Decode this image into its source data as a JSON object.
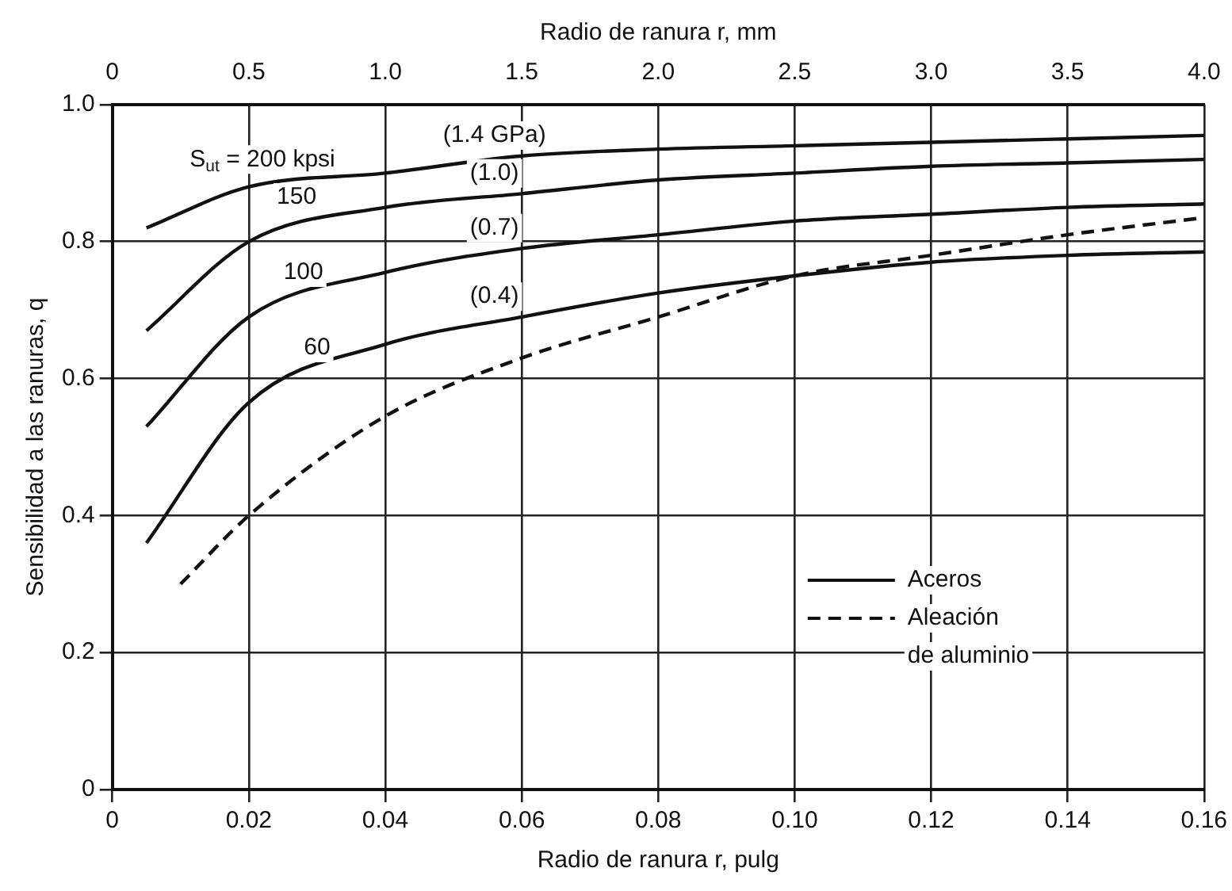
{
  "chart_data": {
    "type": "line",
    "xlabel": "Radio de ranura r, pulg",
    "x2label": "Radio de ranura r, mm",
    "ylabel": "Sensibilidad a las ranuras, q",
    "xlim": [
      0,
      0.16
    ],
    "xticks": [
      0,
      0.02,
      0.04,
      0.06,
      0.08,
      {
        "value": 0.1,
        "label": "0.10"
      },
      0.12,
      0.14,
      0.16
    ],
    "x2lim": [
      0,
      4
    ],
    "x2ticks": [
      0,
      0.5,
      {
        "value": 1,
        "label": "1.0"
      },
      1.5,
      {
        "value": 2,
        "label": "2.0"
      },
      2.5,
      {
        "value": 3,
        "label": "3.0"
      },
      3.5,
      {
        "value": 4,
        "label": "4.0"
      }
    ],
    "ylim": [
      0,
      1
    ],
    "yticks": [
      0,
      0.2,
      0.4,
      0.6,
      0.8,
      {
        "value": 1,
        "label": "1.0"
      }
    ],
    "grid": true,
    "legend": "bottom right",
    "marker": "none",
    "series": [
      {
        "name": "Aceros",
        "color": "#111111",
        "line_style": "solid",
        "x": [
          0.005,
          0.02,
          0.04,
          0.06,
          0.08,
          0.1,
          0.12,
          0.14,
          0.16
        ],
        "values": [
          0.82,
          0.88,
          0.9,
          0.925,
          0.935,
          0.94,
          0.945,
          0.95,
          0.955
        ]
      },
      {
        "color": "#111111",
        "line_style": "solid",
        "x": [
          0.005,
          0.02,
          0.04,
          0.06,
          0.08,
          0.1,
          0.12,
          0.14,
          0.16
        ],
        "values": [
          0.67,
          0.8,
          0.85,
          0.87,
          0.89,
          0.9,
          0.91,
          0.915,
          0.92
        ]
      },
      {
        "color": "#111111",
        "line_style": "solid",
        "x": [
          0.005,
          0.02,
          0.04,
          0.06,
          0.08,
          0.1,
          0.12,
          0.14,
          0.16
        ],
        "values": [
          0.53,
          0.69,
          0.755,
          0.79,
          0.81,
          0.83,
          0.84,
          0.85,
          0.855
        ]
      },
      {
        "color": "#111111",
        "line_style": "solid",
        "x": [
          0.005,
          0.02,
          0.04,
          0.06,
          0.08,
          0.1,
          0.12,
          0.14,
          0.16
        ],
        "values": [
          0.36,
          0.565,
          0.65,
          0.69,
          0.725,
          0.75,
          0.77,
          0.78,
          0.785
        ]
      },
      {
        "name": "Aleación de aluminio",
        "color": "#111111",
        "line_style": "dashed",
        "x": [
          0.01,
          0.02,
          0.04,
          0.06,
          0.08,
          0.1,
          0.12,
          0.14,
          0.16
        ],
        "values": [
          0.3,
          0.4,
          0.545,
          0.63,
          0.69,
          0.75,
          0.78,
          0.81,
          0.835
        ]
      }
    ],
    "annotations": [
      {
        "text": "S$_{ut}$ = 200 kpsi",
        "x": 0.022,
        "y": 0.885
      },
      {
        "text": "(1.4 GPa)",
        "x": 0.056,
        "y": 0.92
      },
      {
        "text": "150",
        "x": 0.027,
        "y": 0.83
      },
      {
        "text": "(1.0)",
        "x": 0.056,
        "y": 0.865
      },
      {
        "text": "100",
        "x": 0.028,
        "y": 0.72
      },
      {
        "text": "(0.7)",
        "x": 0.056,
        "y": 0.785
      },
      {
        "text": "60",
        "x": 0.03,
        "y": 0.61
      },
      {
        "text": "(0.4)",
        "x": 0.056,
        "y": 0.685
      }
    ]
  }
}
